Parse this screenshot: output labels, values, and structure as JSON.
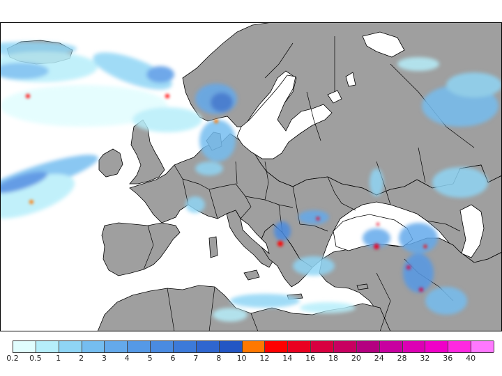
{
  "map": {
    "colors": {
      "ocean": "#ffffff",
      "land": "#9f9f9f",
      "border": "#000000"
    }
  },
  "legend": {
    "labels": [
      "0.2",
      "0.5",
      "1",
      "2",
      "3",
      "4",
      "5",
      "6",
      "7",
      "8",
      "10",
      "12",
      "14",
      "16",
      "18",
      "20",
      "24",
      "28",
      "32",
      "36",
      "40"
    ],
    "colors": [
      "#e1fdfe",
      "#b6eefa",
      "#8fd5f5",
      "#75bdf0",
      "#64a9eb",
      "#5599e6",
      "#4a8be1",
      "#3c7ad9",
      "#2f66cf",
      "#2356c4",
      "#ff7800",
      "#ff0000",
      "#ea0020",
      "#d80040",
      "#c80060",
      "#b40080",
      "#c800a0",
      "#dc00b4",
      "#f000c8",
      "#ff28e1",
      "#ff78ff"
    ]
  }
}
